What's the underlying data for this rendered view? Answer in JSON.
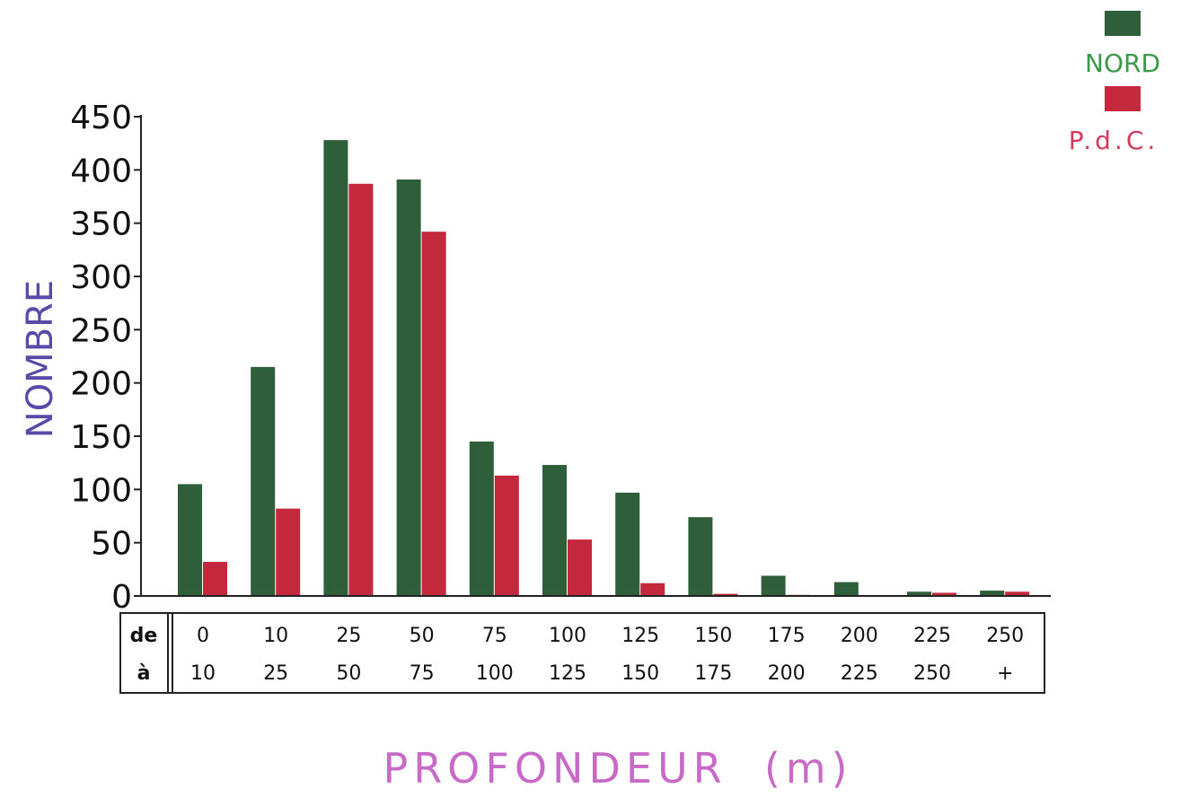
{
  "chart_data": {
    "type": "bar",
    "title": "",
    "xlabel": "PROFONDEUR  (m)",
    "ylabel": "NOMBRE",
    "ylim": [
      0,
      450
    ],
    "yticks": [
      "0",
      "50",
      "100",
      "150",
      "200",
      "250",
      "300",
      "350",
      "400",
      "450"
    ],
    "categories": [
      "0-10",
      "10-25",
      "25-50",
      "50-75",
      "75-100",
      "100-125",
      "125-150",
      "150-175",
      "175-200",
      "200-225",
      "225-250",
      "250-+"
    ],
    "table": {
      "row_from_label": "de",
      "row_to_label": "à",
      "from": [
        "0",
        "10",
        "25",
        "50",
        "75",
        "100",
        "125",
        "150",
        "175",
        "200",
        "225",
        "250"
      ],
      "to": [
        "10",
        "25",
        "50",
        "75",
        "100",
        "125",
        "150",
        "175",
        "200",
        "225",
        "250",
        "+"
      ]
    },
    "series": [
      {
        "name": "NORD",
        "color": "#2f5e3a",
        "values": [
          105,
          215,
          428,
          391,
          145,
          123,
          97,
          74,
          19,
          13,
          4,
          5
        ]
      },
      {
        "name": "P.d.C.",
        "color": "#c4283c",
        "values": [
          32,
          82,
          387,
          342,
          113,
          53,
          12,
          2,
          1,
          0,
          3,
          4
        ]
      }
    ],
    "legend_position": "top-right",
    "grid": false
  }
}
